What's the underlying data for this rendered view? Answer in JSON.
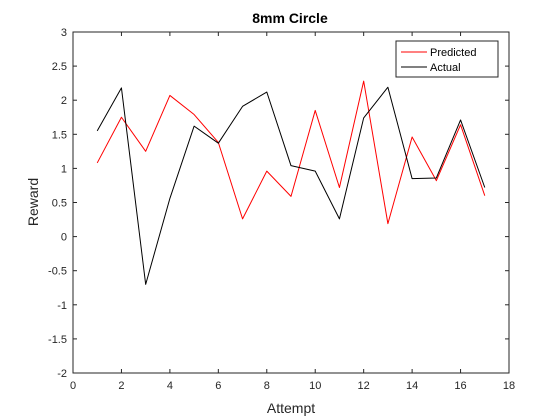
{
  "chart_data": {
    "type": "line",
    "title": "8mm Circle",
    "xlabel": "Attempt",
    "ylabel": "Reward",
    "xlim": [
      0,
      18
    ],
    "ylim": [
      -2,
      3
    ],
    "xticks": [
      "0",
      "2",
      "4",
      "6",
      "8",
      "10",
      "12",
      "14",
      "16",
      "18"
    ],
    "yticks": [
      "-2",
      "-1.5",
      "-1",
      "-0.5",
      "0",
      "0.5",
      "1",
      "1.5",
      "2",
      "2.5",
      "3"
    ],
    "grid": false,
    "legend_position": "top-right",
    "x": [
      1,
      2,
      3,
      4,
      5,
      6,
      7,
      8,
      9,
      10,
      11,
      12,
      13,
      14,
      15,
      16,
      17
    ],
    "series": [
      {
        "name": "Predicted",
        "color": "#ff0000",
        "values": [
          1.08,
          1.75,
          1.25,
          2.07,
          1.79,
          1.38,
          0.26,
          0.96,
          0.59,
          1.85,
          0.72,
          2.28,
          0.19,
          1.46,
          0.82,
          1.64,
          0.6
        ]
      },
      {
        "name": "Actual",
        "color": "#000000",
        "values": [
          1.55,
          2.18,
          -0.7,
          0.56,
          1.62,
          1.37,
          1.91,
          2.12,
          1.04,
          0.96,
          0.26,
          1.74,
          2.19,
          0.85,
          0.86,
          1.71,
          0.72
        ]
      }
    ]
  }
}
